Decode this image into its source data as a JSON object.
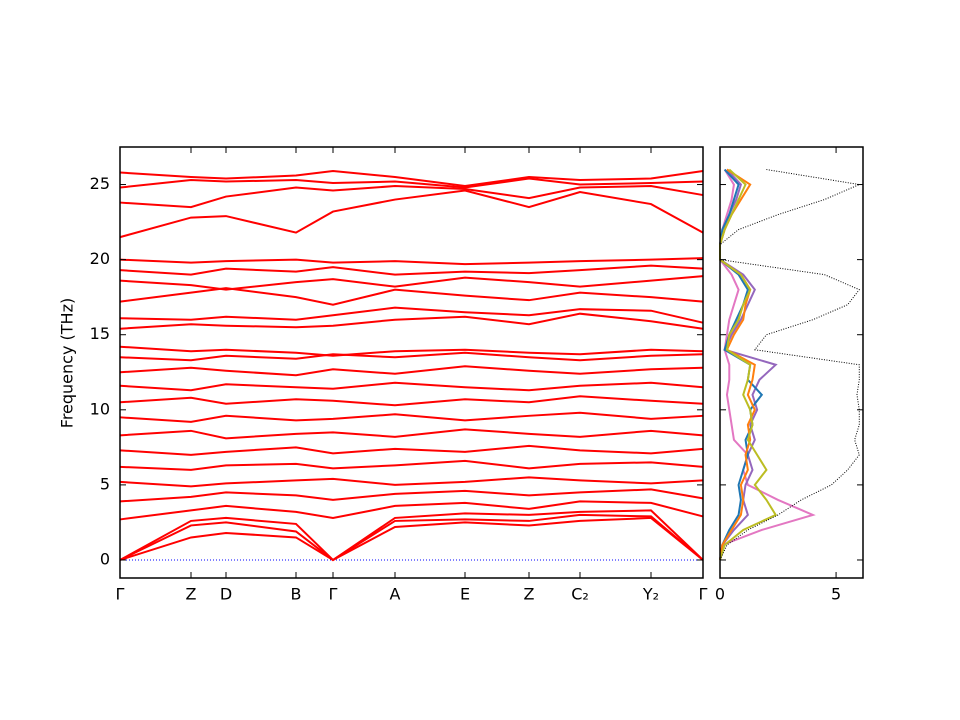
{
  "chart_data": [
    {
      "type": "line",
      "ylabel": "Frequency (THz)",
      "x": [
        0,
        71,
        106,
        176,
        213,
        275,
        345,
        409,
        460,
        531,
        583
      ],
      "xlim": [
        0,
        583
      ],
      "xticks": [
        {
          "value": 0,
          "label": "Γ"
        },
        {
          "value": 71,
          "label": "Z"
        },
        {
          "value": 106,
          "label": "D"
        },
        {
          "value": 176,
          "label": "B"
        },
        {
          "value": 213,
          "label": "Γ"
        },
        {
          "value": 275,
          "label": "A"
        },
        {
          "value": 345,
          "label": "E"
        },
        {
          "value": 409,
          "label": "Z"
        },
        {
          "value": 460,
          "label": "C₂"
        },
        {
          "value": 531,
          "label": "Y₂"
        },
        {
          "value": 583,
          "label": "Γ"
        }
      ],
      "ylim": [
        -1.2,
        27.5
      ],
      "yticks": [
        0,
        5,
        10,
        15,
        20,
        25
      ],
      "hlines": [
        0
      ],
      "hline_color": "#0000ff",
      "series": [
        {
          "color": "#ff0000",
          "values": [
            0,
            1.5,
            1.8,
            1.5,
            0,
            2.2,
            2.5,
            2.3,
            2.6,
            2.8,
            0
          ]
        },
        {
          "color": "#ff0000",
          "values": [
            0,
            2.3,
            2.5,
            1.9,
            0,
            2.6,
            2.7,
            2.6,
            3.0,
            2.9,
            0
          ]
        },
        {
          "color": "#ff0000",
          "values": [
            0,
            2.6,
            2.8,
            2.4,
            0,
            2.8,
            3.1,
            3.0,
            3.2,
            3.3,
            0
          ]
        },
        {
          "color": "#ff0000",
          "values": [
            2.7,
            3.3,
            3.6,
            3.2,
            2.8,
            3.6,
            3.8,
            3.4,
            3.9,
            3.8,
            2.9
          ]
        },
        {
          "color": "#ff0000",
          "values": [
            3.9,
            4.2,
            4.5,
            4.3,
            4.0,
            4.4,
            4.6,
            4.3,
            4.5,
            4.7,
            4.1
          ]
        },
        {
          "color": "#ff0000",
          "values": [
            5.2,
            4.9,
            5.1,
            5.3,
            5.4,
            5.0,
            5.2,
            5.5,
            5.3,
            5.1,
            5.3
          ]
        },
        {
          "color": "#ff0000",
          "values": [
            6.2,
            6.0,
            6.3,
            6.4,
            6.1,
            6.3,
            6.6,
            6.1,
            6.4,
            6.5,
            6.2
          ]
        },
        {
          "color": "#ff0000",
          "values": [
            7.3,
            7.0,
            7.2,
            7.5,
            7.1,
            7.4,
            7.2,
            7.6,
            7.3,
            7.1,
            7.4
          ]
        },
        {
          "color": "#ff0000",
          "values": [
            8.3,
            8.6,
            8.1,
            8.4,
            8.5,
            8.2,
            8.7,
            8.4,
            8.2,
            8.6,
            8.3
          ]
        },
        {
          "color": "#ff0000",
          "values": [
            9.5,
            9.2,
            9.6,
            9.3,
            9.4,
            9.7,
            9.3,
            9.6,
            9.8,
            9.4,
            9.6
          ]
        },
        {
          "color": "#ff0000",
          "values": [
            10.5,
            10.8,
            10.4,
            10.7,
            10.6,
            10.3,
            10.7,
            10.5,
            10.9,
            10.6,
            10.4
          ]
        },
        {
          "color": "#ff0000",
          "values": [
            11.6,
            11.3,
            11.7,
            11.5,
            11.4,
            11.8,
            11.5,
            11.3,
            11.6,
            11.8,
            11.5
          ]
        },
        {
          "color": "#ff0000",
          "values": [
            12.5,
            12.8,
            12.6,
            12.3,
            12.7,
            12.4,
            12.9,
            12.6,
            12.4,
            12.7,
            12.8
          ]
        },
        {
          "color": "#ff0000",
          "values": [
            13.5,
            13.3,
            13.6,
            13.4,
            13.7,
            13.5,
            13.8,
            13.5,
            13.3,
            13.6,
            13.7
          ]
        },
        {
          "color": "#ff0000",
          "values": [
            14.2,
            13.9,
            14.0,
            13.8,
            13.6,
            13.9,
            14.0,
            13.8,
            13.7,
            14.0,
            13.9
          ]
        },
        {
          "color": "#ff0000",
          "values": [
            15.4,
            15.7,
            15.6,
            15.5,
            15.6,
            16.0,
            16.2,
            15.7,
            16.4,
            15.9,
            15.4
          ]
        },
        {
          "color": "#ff0000",
          "values": [
            16.1,
            16.0,
            16.2,
            16.0,
            16.3,
            16.8,
            16.5,
            16.3,
            16.7,
            16.6,
            15.8
          ]
        },
        {
          "color": "#ff0000",
          "values": [
            17.2,
            17.8,
            18.1,
            17.5,
            17.0,
            18.0,
            17.6,
            17.3,
            17.8,
            17.5,
            17.2
          ]
        },
        {
          "color": "#ff0000",
          "values": [
            18.6,
            18.3,
            18.0,
            18.5,
            18.7,
            18.2,
            18.8,
            18.5,
            18.2,
            18.6,
            18.9
          ]
        },
        {
          "color": "#ff0000",
          "values": [
            19.3,
            19.0,
            19.4,
            19.2,
            19.5,
            19.0,
            19.2,
            19.1,
            19.3,
            19.6,
            19.4
          ]
        },
        {
          "color": "#ff0000",
          "values": [
            20.0,
            19.8,
            19.9,
            20.0,
            19.8,
            19.9,
            19.7,
            19.8,
            19.9,
            20.0,
            20.1
          ]
        },
        {
          "color": "#ff0000",
          "values": [
            21.5,
            22.8,
            22.9,
            21.8,
            23.2,
            24.0,
            24.6,
            23.5,
            24.5,
            23.7,
            21.8
          ]
        },
        {
          "color": "#ff0000",
          "values": [
            23.8,
            23.5,
            24.2,
            24.8,
            24.6,
            24.9,
            24.7,
            24.1,
            24.8,
            24.9,
            24.3
          ]
        },
        {
          "color": "#ff0000",
          "values": [
            24.8,
            25.3,
            25.2,
            25.3,
            25.1,
            25.2,
            24.8,
            25.4,
            25.0,
            25.1,
            25.2
          ]
        },
        {
          "color": "#ff0000",
          "values": [
            25.8,
            25.5,
            25.4,
            25.6,
            25.9,
            25.5,
            24.9,
            25.5,
            25.3,
            25.4,
            25.9
          ]
        }
      ]
    },
    {
      "type": "line",
      "orientation": "horizontal",
      "y": [
        0,
        1,
        2,
        3,
        4,
        5,
        6,
        7,
        8,
        9,
        10,
        11,
        12,
        13,
        14,
        15,
        16,
        17,
        18,
        19,
        20,
        21,
        22,
        23,
        24,
        25,
        26
      ],
      "xlim": [
        0,
        6.16
      ],
      "xticks": [
        0,
        5
      ],
      "ylim": [
        -1.2,
        27.5
      ],
      "yticks": [
        0,
        5,
        10,
        15,
        20,
        25
      ],
      "series": [
        {
          "color": "#e377c2",
          "values": [
            0,
            0.1,
            1.8,
            4.0,
            2.5,
            1.2,
            1.0,
            1.2,
            0.6,
            0.5,
            0.4,
            0.3,
            0.4,
            0.4,
            0.2,
            0.3,
            0.4,
            0.6,
            0.8,
            0.5,
            0,
            0,
            0.1,
            0.3,
            0.5,
            0.6,
            0.2
          ]
        },
        {
          "color": "#9467bd",
          "values": [
            0,
            0.1,
            0.6,
            1.2,
            1.0,
            1.1,
            1.4,
            1.2,
            1.5,
            1.3,
            1.6,
            1.4,
            1.7,
            2.4,
            0.2,
            0.5,
            0.9,
            1.2,
            1.5,
            1.0,
            0,
            0,
            0.2,
            0.4,
            0.7,
            0.9,
            0.3
          ]
        },
        {
          "color": "#1f77b4",
          "values": [
            0,
            0.1,
            0.4,
            0.8,
            0.9,
            0.8,
            1.0,
            1.2,
            1.1,
            1.4,
            1.3,
            1.8,
            1.2,
            1.3,
            0.2,
            0.4,
            0.7,
            1.0,
            1.2,
            0.8,
            0,
            0,
            0.1,
            0.4,
            0.6,
            0.8,
            0.2
          ]
        },
        {
          "color": "#ff7f0e",
          "values": [
            0,
            0.1,
            0.5,
            0.9,
            1.0,
            0.9,
            1.2,
            1.1,
            1.3,
            1.2,
            1.5,
            1.2,
            1.4,
            1.5,
            0.3,
            0.6,
            1.0,
            1.1,
            1.3,
            0.9,
            0,
            0,
            0.2,
            0.5,
            0.9,
            1.3,
            0.3
          ]
        },
        {
          "color": "#bcbd22",
          "values": [
            0,
            0.2,
            1.0,
            2.4,
            2.0,
            1.5,
            2.0,
            1.6,
            1.2,
            1.4,
            1.3,
            1.0,
            1.2,
            1.3,
            0.3,
            0.4,
            0.8,
            1.0,
            1.3,
            0.9,
            0,
            0,
            0.2,
            0.5,
            0.8,
            1.1,
            0.4
          ]
        },
        {
          "color": "#000000",
          "linestyle": "dotted",
          "values": [
            0,
            0.3,
            1.2,
            2.5,
            3.5,
            4.8,
            5.5,
            6.0,
            5.8,
            6.0,
            6.0,
            5.9,
            6.0,
            6.0,
            1.5,
            2.0,
            4.0,
            5.5,
            6.0,
            4.5,
            0,
            0,
            0.8,
            2.5,
            4.5,
            6.0,
            2.0
          ]
        }
      ]
    }
  ]
}
